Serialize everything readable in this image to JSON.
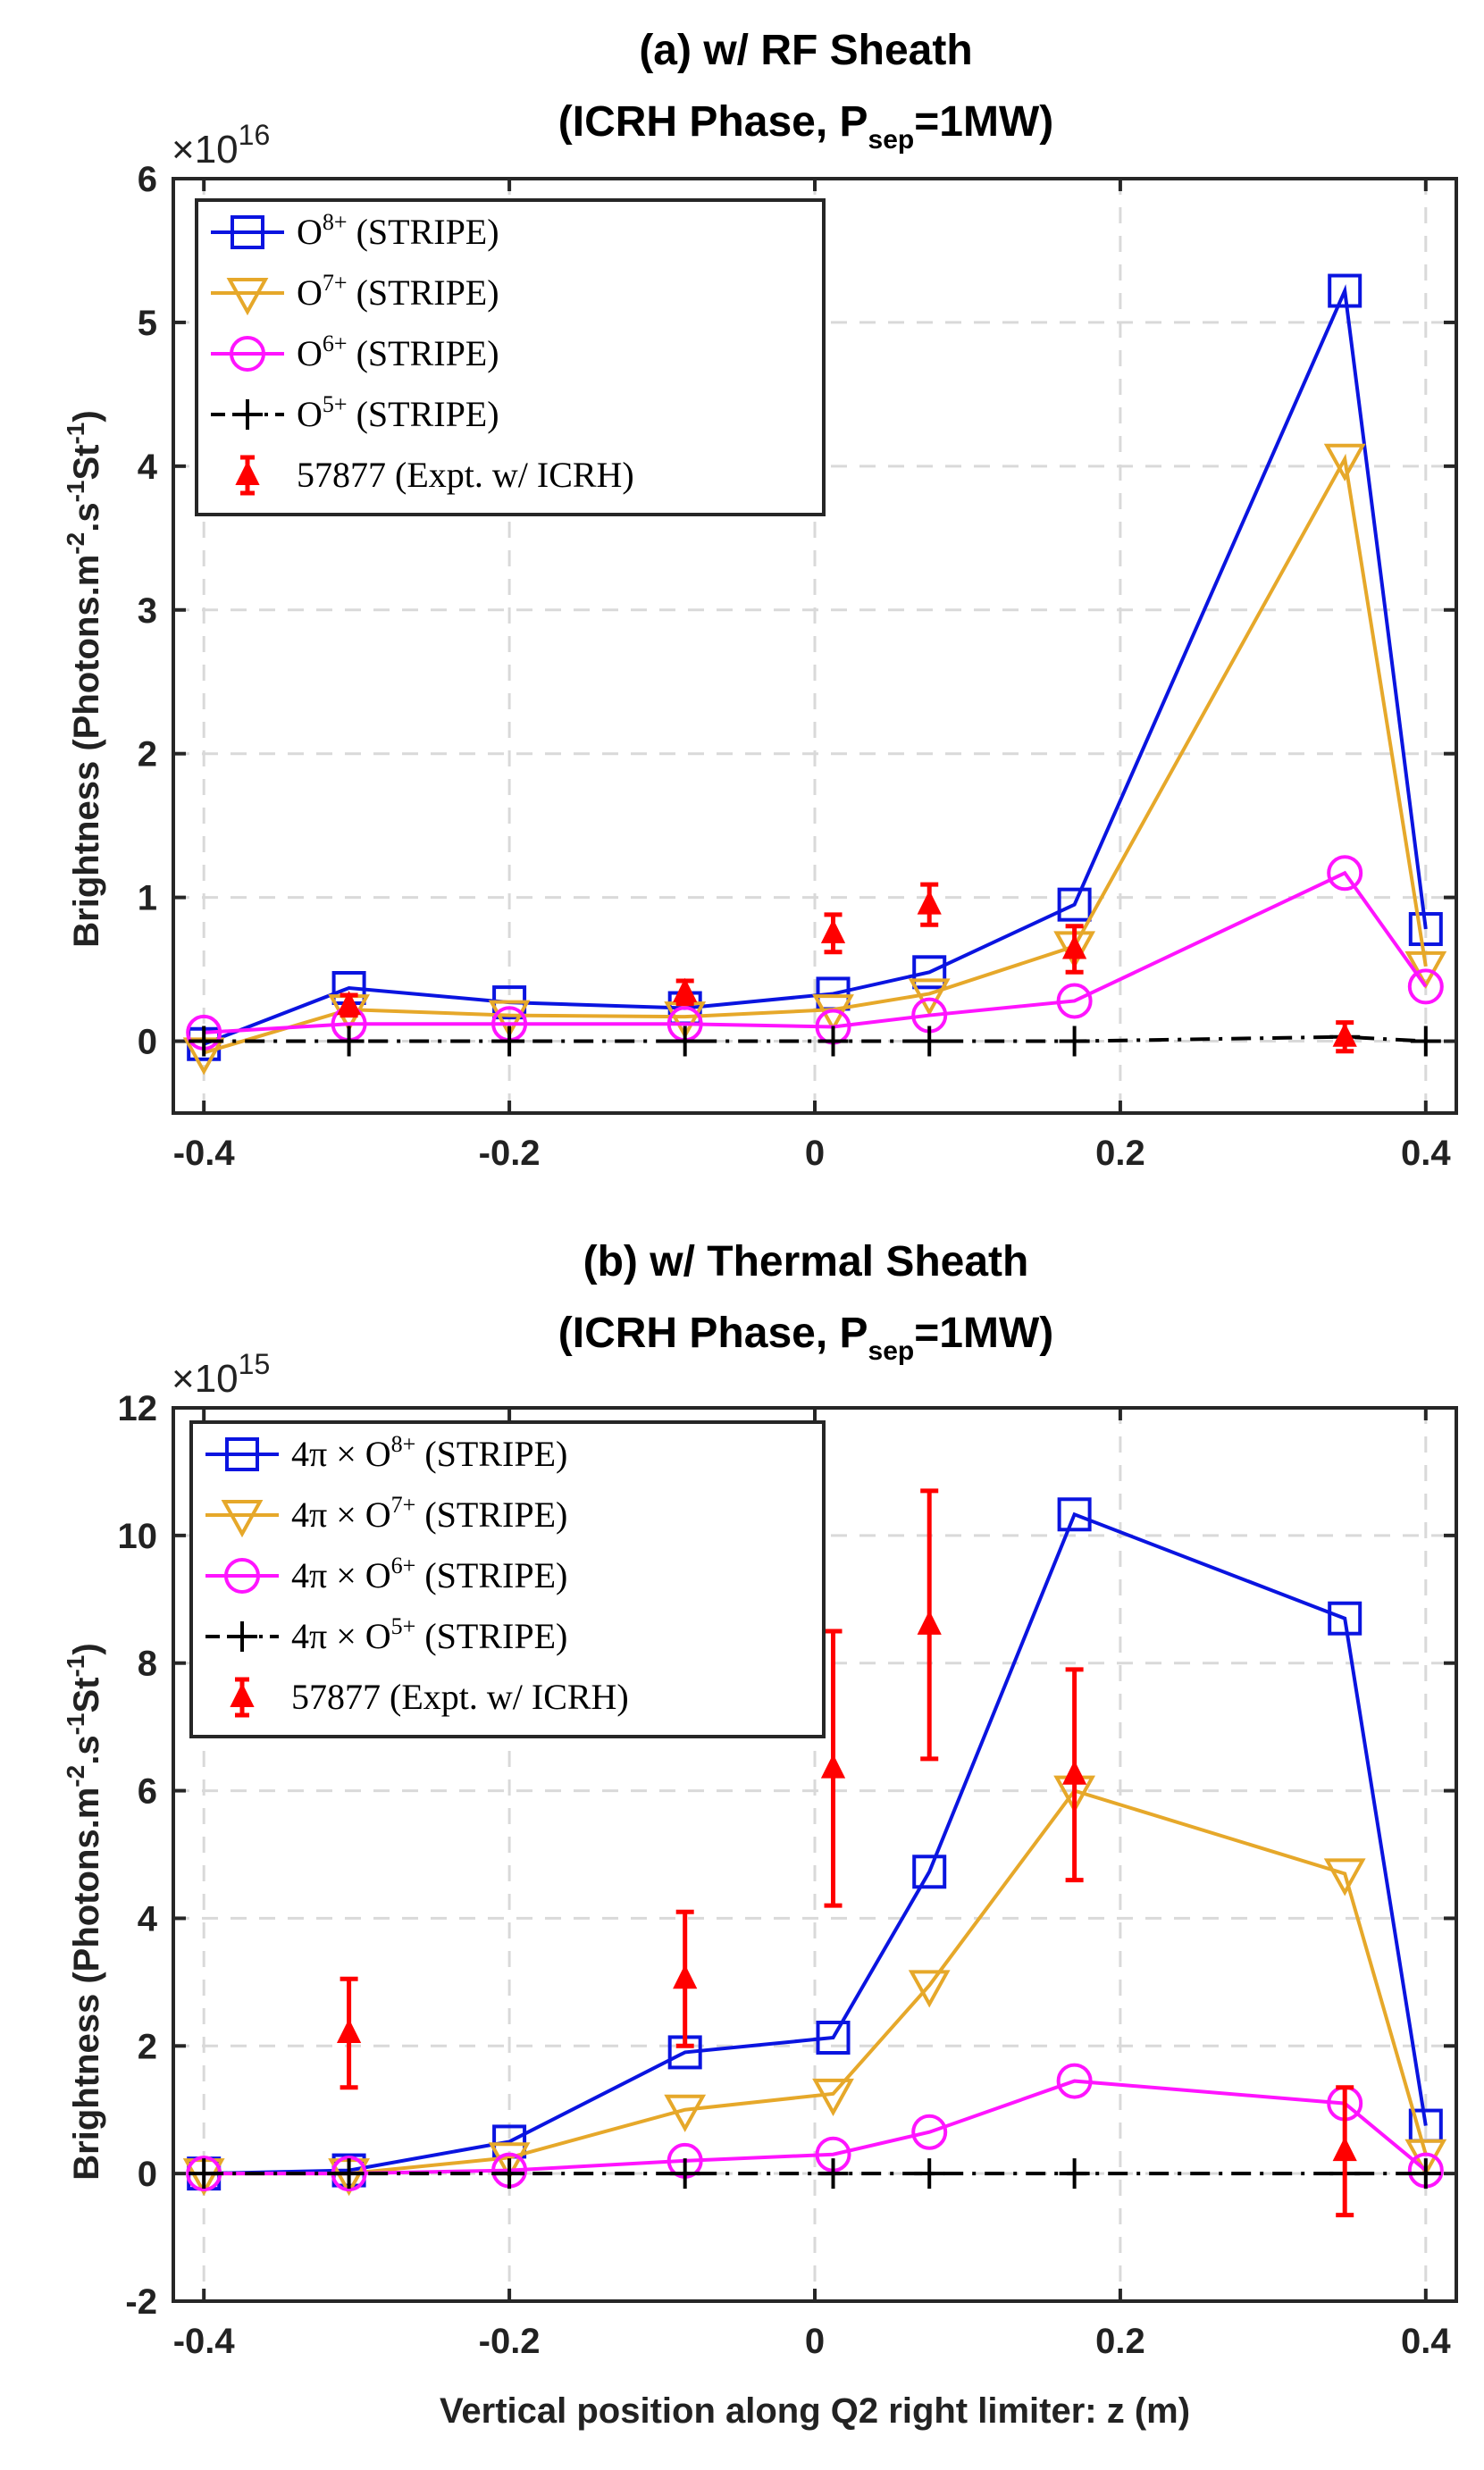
{
  "figure": {
    "xlabel": "Vertical position along Q2 right limiter: z (m)"
  },
  "legend_common": {
    "stripe_suffix": "(STRIPE)",
    "expt_label": "57877 (Expt. w/ ICRH)",
    "thermal_prefix": "4π × "
  },
  "chart_data": [
    {
      "id": "a",
      "type": "line",
      "title_line1": "(a) w/ RF Sheath",
      "title_line2_pre": "(ICRH Phase, P",
      "title_line2_sub": "sep",
      "title_line2_post": "=1MW)",
      "multiplier_base": "×10",
      "multiplier_exp": "16",
      "ylabel_pre": "Brightness (Photons.m",
      "ylabel_sup1": "-2",
      "ylabel_mid": ".s",
      "ylabel_sup2": "-1",
      "ylabel_mid2": "St",
      "ylabel_sup3": "-1",
      "ylabel_post": ")",
      "xlim": [
        -0.42,
        0.42
      ],
      "ylim": [
        -0.5,
        6
      ],
      "xticks": [
        -0.4,
        -0.2,
        0,
        0.2,
        0.4
      ],
      "xtick_labels": [
        "-0.4",
        "-0.2",
        "0",
        "0.2",
        "0.4"
      ],
      "yticks": [
        0,
        1,
        2,
        3,
        4,
        5,
        6
      ],
      "ytick_labels": [
        "0",
        "1",
        "2",
        "3",
        "4",
        "5",
        "6"
      ],
      "grid": true,
      "legend_position": "top-left",
      "x": [
        -0.4,
        -0.305,
        -0.2,
        -0.085,
        0.012,
        0.075,
        0.17,
        0.347,
        0.4
      ],
      "series": [
        {
          "name": "O",
          "charge": "8+",
          "color": "#0a14e0",
          "marker": "square",
          "linestyle": "solid",
          "values": [
            -0.02,
            0.37,
            0.27,
            0.23,
            0.33,
            0.48,
            0.95,
            5.22,
            0.78
          ]
        },
        {
          "name": "O",
          "charge": "7+",
          "color": "#e6a82a",
          "marker": "triangle-down",
          "linestyle": "solid",
          "values": [
            -0.08,
            0.22,
            0.18,
            0.17,
            0.22,
            0.33,
            0.66,
            4.05,
            0.52
          ]
        },
        {
          "name": "O",
          "charge": "6+",
          "color": "#ff14ff",
          "marker": "circle",
          "linestyle": "solid",
          "values": [
            0.06,
            0.12,
            0.12,
            0.12,
            0.1,
            0.18,
            0.28,
            1.17,
            0.38
          ]
        },
        {
          "name": "O",
          "charge": "5+",
          "color": "#000000",
          "marker": "plus",
          "linestyle": "dashdot",
          "values": [
            0.0,
            0.0,
            0.0,
            0.0,
            0.0,
            0.0,
            0.0,
            0.03,
            0.0
          ]
        }
      ],
      "experiment": {
        "color": "#ff0000",
        "x": [
          -0.305,
          -0.085,
          0.012,
          0.075,
          0.17,
          0.347
        ],
        "y": [
          0.25,
          0.34,
          0.75,
          0.95,
          0.64,
          0.03
        ],
        "err": [
          0.07,
          0.08,
          0.13,
          0.14,
          0.16,
          0.1
        ]
      }
    },
    {
      "id": "b",
      "type": "line",
      "title_line1": "(b) w/ Thermal Sheath",
      "title_line2_pre": "(ICRH Phase, P",
      "title_line2_sub": "sep",
      "title_line2_post": "=1MW)",
      "multiplier_base": "×10",
      "multiplier_exp": "15",
      "ylabel_pre": "Brightness (Photons.m",
      "ylabel_sup1": "-2",
      "ylabel_mid": ".s",
      "ylabel_sup2": "-1",
      "ylabel_mid2": "St",
      "ylabel_sup3": "-1",
      "ylabel_post": ")",
      "xlim": [
        -0.42,
        0.42
      ],
      "ylim": [
        -2,
        12
      ],
      "xticks": [
        -0.4,
        -0.2,
        0,
        0.2,
        0.4
      ],
      "xtick_labels": [
        "-0.4",
        "-0.2",
        "0",
        "0.2",
        "0.4"
      ],
      "yticks": [
        -2,
        0,
        2,
        4,
        6,
        8,
        10,
        12
      ],
      "ytick_labels": [
        "-2",
        "0",
        "2",
        "4",
        "6",
        "8",
        "10",
        "12"
      ],
      "grid": true,
      "legend_position": "top-left",
      "x": [
        -0.4,
        -0.305,
        -0.2,
        -0.085,
        0.012,
        0.075,
        0.17,
        0.347,
        0.4
      ],
      "series": [
        {
          "name": "O",
          "charge": "8+",
          "color": "#0a14e0",
          "marker": "square",
          "linestyle": "solid",
          "values": [
            0.0,
            0.05,
            0.5,
            1.9,
            2.13,
            4.73,
            10.33,
            8.7,
            0.75
          ]
        },
        {
          "name": "O",
          "charge": "7+",
          "color": "#e6a82a",
          "marker": "triangle-down",
          "linestyle": "solid",
          "values": [
            0.0,
            0.0,
            0.25,
            1.0,
            1.25,
            2.95,
            6.0,
            4.7,
            0.3
          ]
        },
        {
          "name": "O",
          "charge": "6+",
          "color": "#ff14ff",
          "marker": "circle",
          "linestyle": "solid",
          "values": [
            0.0,
            0.0,
            0.05,
            0.2,
            0.3,
            0.65,
            1.45,
            1.1,
            0.05
          ]
        },
        {
          "name": "O",
          "charge": "5+",
          "color": "#000000",
          "marker": "plus",
          "linestyle": "dashdot",
          "values": [
            0.0,
            0.0,
            0.0,
            0.0,
            0.0,
            0.0,
            0.0,
            0.0,
            0.0
          ]
        }
      ],
      "experiment": {
        "color": "#ff0000",
        "x": [
          -0.305,
          -0.085,
          0.012,
          0.075,
          0.17,
          0.347
        ],
        "y": [
          2.2,
          3.05,
          6.35,
          8.6,
          6.25,
          0.35
        ],
        "err": [
          0.85,
          1.05,
          2.15,
          2.1,
          1.65,
          1.0
        ]
      }
    }
  ]
}
